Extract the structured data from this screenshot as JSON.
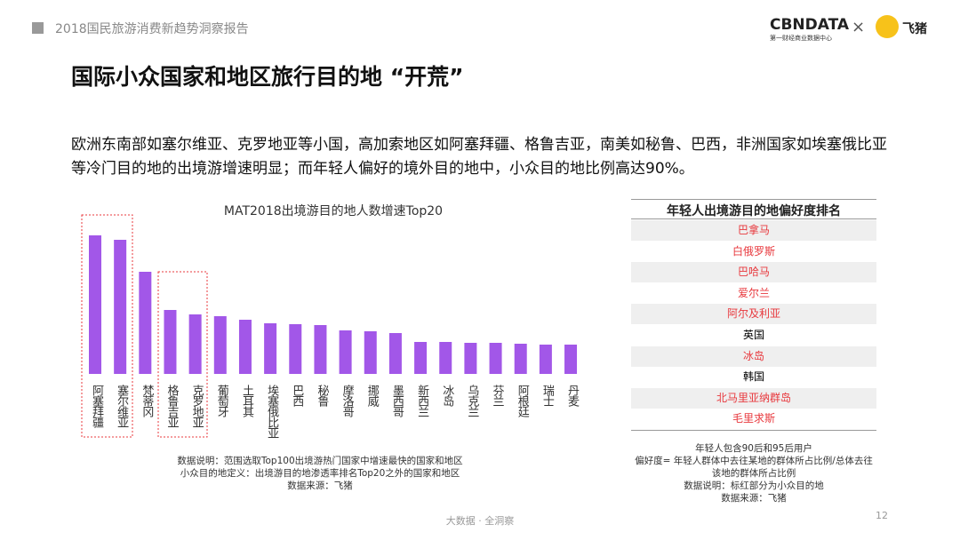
{
  "header": {
    "report": "2018国民旅游消费新趋势洞察报告",
    "logo": "CBNDATA",
    "logo_sub": "第一财经商业数据中心",
    "times": "×",
    "partner": "飞猪"
  },
  "title": "国际小众国家和地区旅行目的地 “开荒”",
  "description": "欧洲东南部如塞尔维亚、克罗地亚等小国，高加索地区如阿塞拜疆、格鲁吉亚，南美如秘鲁、巴西，非洲国家如埃塞俄比亚等冷门目的地的出境游增速明显；而年轻人偏好的境外目的地中，小众目的地比例高达90%。",
  "chart_data": {
    "type": "bar",
    "title": "MAT2018出境游目的地人数增速Top20",
    "color": "#a257e8",
    "categories": [
      "阿塞拜疆",
      "塞尔维亚",
      "梵蒂冈",
      "格鲁吉亚",
      "克罗地亚",
      "葡萄牙",
      "土耳其",
      "埃塞俄比亚",
      "巴西",
      "秘鲁",
      "摩洛哥",
      "挪威",
      "墨西哥",
      "新西兰",
      "冰岛",
      "乌克兰",
      "芬兰",
      "阿根廷",
      "瑞士",
      "丹麦"
    ],
    "values": [
      156,
      151,
      115,
      72,
      67,
      65,
      61,
      57,
      56,
      55,
      49,
      48,
      46,
      36,
      36,
      35,
      35,
      34,
      33,
      33
    ],
    "notes": [
      "数据说明：范围选取Top100出境游热门国家中增速最快的国家和地区",
      "小众目的地定义：出境游目的地渗透率排名Top20之外的国家和地区",
      "数据来源：飞猪"
    ]
  },
  "ranking": {
    "title": "年轻人出境游目的地偏好度排名",
    "rows": [
      {
        "name": "巴拿马",
        "color": "#e8383d"
      },
      {
        "name": "白俄罗斯",
        "color": "#e8383d"
      },
      {
        "name": "巴哈马",
        "color": "#e8383d"
      },
      {
        "name": "爱尔兰",
        "color": "#e8383d"
      },
      {
        "name": "阿尔及利亚",
        "color": "#e8383d"
      },
      {
        "name": "英国",
        "color": "#000000"
      },
      {
        "name": "冰岛",
        "color": "#e8383d"
      },
      {
        "name": "韩国",
        "color": "#000000"
      },
      {
        "name": "北马里亚纳群岛",
        "color": "#e8383d"
      },
      {
        "name": "毛里求斯",
        "color": "#e8383d"
      }
    ],
    "notes": [
      "年轻人包含90后和95后用户",
      "偏好度= 年轻人群体中去往某地的群体所占比例/总体去往该地的群体所占比例",
      "数据说明：标红部分为小众目的地",
      "数据来源：飞猪"
    ]
  },
  "footer": {
    "tagline": "大数据 · 全洞察",
    "page": "12"
  }
}
